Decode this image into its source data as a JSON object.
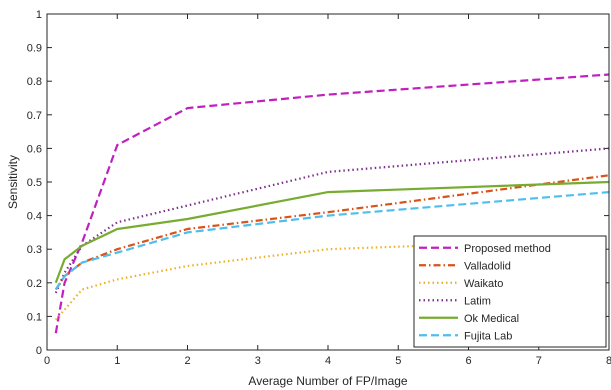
{
  "chart_data": {
    "type": "line",
    "xlabel": "Average Number of FP/Image",
    "ylabel": "Sensitivity",
    "xlim": [
      0,
      8
    ],
    "ylim": [
      0,
      1
    ],
    "xticks": [
      "0",
      "1",
      "2",
      "3",
      "4",
      "5",
      "6",
      "7",
      "8"
    ],
    "yticks": [
      "0",
      "0.1",
      "0.2",
      "0.3",
      "0.4",
      "0.5",
      "0.6",
      "0.7",
      "0.8",
      "0.9",
      "1"
    ],
    "grid": false,
    "legend_position": "bottom-right",
    "series": [
      {
        "name": "Proposed method",
        "color": "#c020c0",
        "dash": "dashed",
        "x": [
          0.125,
          0.25,
          0.5,
          1,
          2,
          4,
          8
        ],
        "y": [
          0.05,
          0.2,
          0.32,
          0.61,
          0.72,
          0.76,
          0.82
        ]
      },
      {
        "name": "Valladolid",
        "color": "#d95319",
        "dash": "dashdot",
        "x": [
          0.125,
          0.25,
          0.5,
          1,
          2,
          4,
          8
        ],
        "y": [
          0.18,
          0.22,
          0.26,
          0.3,
          0.36,
          0.41,
          0.52
        ]
      },
      {
        "name": "Waikato",
        "color": "#edb120",
        "dash": "dotted",
        "x": [
          0.125,
          0.25,
          0.5,
          1,
          2,
          4,
          8
        ],
        "y": [
          0.09,
          0.12,
          0.18,
          0.21,
          0.25,
          0.3,
          0.33
        ]
      },
      {
        "name": "Latim",
        "color": "#7e2f8e",
        "dash": "dotted",
        "x": [
          0.125,
          0.25,
          0.5,
          1,
          2,
          4,
          8
        ],
        "y": [
          0.17,
          0.23,
          0.31,
          0.38,
          0.43,
          0.53,
          0.6
        ]
      },
      {
        "name": "Ok Medical",
        "color": "#77ac30",
        "dash": "solid",
        "x": [
          0.125,
          0.25,
          0.5,
          1,
          2,
          4,
          8
        ],
        "y": [
          0.2,
          0.27,
          0.31,
          0.36,
          0.39,
          0.47,
          0.5
        ]
      },
      {
        "name": "Fujita Lab",
        "color": "#4dbeee",
        "dash": "dashed",
        "x": [
          0.125,
          0.25,
          0.5,
          1,
          2,
          4,
          8
        ],
        "y": [
          0.18,
          0.22,
          0.26,
          0.29,
          0.35,
          0.4,
          0.47
        ]
      }
    ]
  }
}
